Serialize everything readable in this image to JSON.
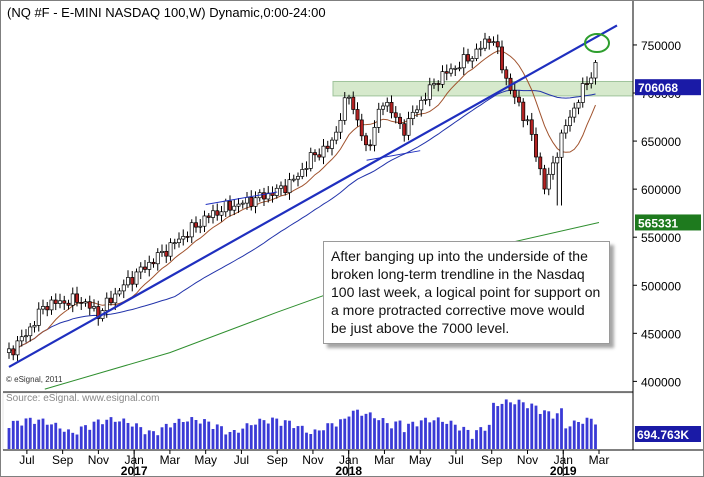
{
  "header": {
    "title": "(NQ #F - E-MINI NASDAQ 100,W) Dynamic,0:00-24:00"
  },
  "credits": {
    "copyright": "© eSignal, 2011",
    "source": "Source: eSignal. www.esignal.com"
  },
  "annotation": {
    "text": "After banging up into the underside of the broken long-term trendline in the Nasdaq 100 last week, a logical point for support on a more protracted corrective move would be just above the 7000 level."
  },
  "price_tags": {
    "last": "706068",
    "ma_long": "565331",
    "volume": "694.763K"
  },
  "colors": {
    "background": "#ffffff",
    "candle": "#000000",
    "up_candle_fill": "#ffffff",
    "down_candle_fill": "#b22222",
    "trendline": "#1f2fbf",
    "ma_short": "#a0522d",
    "ma_mid": "#2233aa",
    "ma_long": "#2f8f2f",
    "support_zone": "#cfe6c4",
    "volume_bars": "#3a3ad6",
    "last_tag": "#1a1aa6",
    "ma_tag": "#1e7a1e",
    "highlight_circle": "#2e9e2e"
  },
  "chart_data": {
    "type": "candlestick",
    "title": "(NQ #F - E-MINI NASDAQ 100,W) Dynamic,0:00-24:00",
    "yaxis": {
      "ticks": [
        400000,
        450000,
        500000,
        550000,
        600000,
        650000,
        700000,
        750000
      ],
      "tick_labels": [
        "400000",
        "450000",
        "500000",
        "550000",
        "600000",
        "650000",
        "700000",
        "750000"
      ],
      "ylim": [
        390000,
        777000
      ]
    },
    "xaxis": {
      "month_labels": [
        "Jul",
        "Sep",
        "Nov",
        "Jan",
        "Mar",
        "May",
        "Jul",
        "Sep",
        "Nov",
        "Jan",
        "Mar",
        "May",
        "Jul",
        "Sep",
        "Nov",
        "Jan",
        "Mar"
      ],
      "year_labels": [
        "2017",
        "2018",
        "2019"
      ],
      "range": [
        "2016-06",
        "2019-03"
      ]
    },
    "anchors": [
      {
        "date": "2016-06",
        "value": 430000
      },
      {
        "date": "2016-07",
        "value": 450000
      },
      {
        "date": "2016-08",
        "value": 480000
      },
      {
        "date": "2016-10",
        "value": 485000
      },
      {
        "date": "2016-11",
        "value": 470000
      },
      {
        "date": "2016-12",
        "value": 492000
      },
      {
        "date": "2017-01",
        "value": 510000
      },
      {
        "date": "2017-03",
        "value": 540000
      },
      {
        "date": "2017-05",
        "value": 570000
      },
      {
        "date": "2017-06",
        "value": 580000
      },
      {
        "date": "2017-07",
        "value": 585000
      },
      {
        "date": "2017-09",
        "value": 598000
      },
      {
        "date": "2017-10",
        "value": 610000
      },
      {
        "date": "2017-11",
        "value": 635000
      },
      {
        "date": "2017-12",
        "value": 645000
      },
      {
        "date": "2018-01",
        "value": 700000
      },
      {
        "date": "2018-02",
        "value": 640000
      },
      {
        "date": "2018-03",
        "value": 695000
      },
      {
        "date": "2018-04",
        "value": 660000
      },
      {
        "date": "2018-05",
        "value": 690000
      },
      {
        "date": "2018-06",
        "value": 715000
      },
      {
        "date": "2018-08",
        "value": 740000
      },
      {
        "date": "2018-09",
        "value": 760000
      },
      {
        "date": "2018-10",
        "value": 705000
      },
      {
        "date": "2018-11",
        "value": 670000
      },
      {
        "date": "2018-12",
        "value": 600000
      },
      {
        "date": "2019-01",
        "value": 660000
      },
      {
        "date": "2019-02",
        "value": 700000
      },
      {
        "date": "2019-03",
        "value": 735000
      }
    ],
    "volume": {
      "label": "694.763K",
      "level_by_period": "higher in late 2018, lower in 2017"
    },
    "overlays": [
      {
        "kind": "trendline",
        "from": {
          "date": "2016-06",
          "value": 415000
        },
        "to": {
          "date": "2019-03",
          "value": 762000
        }
      },
      {
        "kind": "channel_line",
        "from": {
          "date": "2017-05",
          "value": 584000
        },
        "to": {
          "date": "2017-09",
          "value": 597000
        }
      },
      {
        "kind": "channel_line",
        "from": {
          "date": "2018-02",
          "value": 630000
        },
        "to": {
          "date": "2018-05",
          "value": 640000
        }
      },
      {
        "kind": "support_zone",
        "range": [
          697000,
          712000
        ]
      }
    ]
  }
}
